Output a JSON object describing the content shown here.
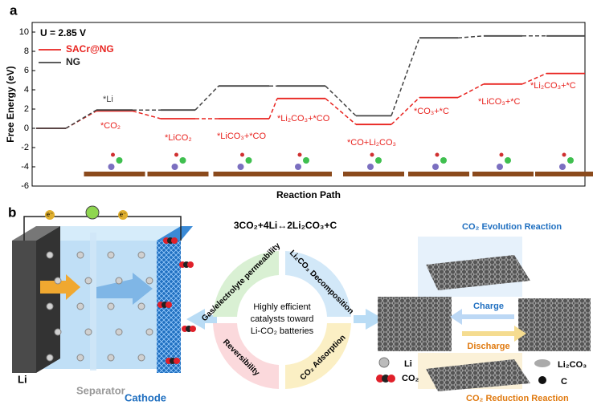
{
  "chart_data": {
    "type": "step_energy",
    "panel": "a",
    "condition": "U = 2.85 V",
    "y_label": "Free Energy (eV)",
    "x_label": "Reaction Path",
    "categories": [
      null,
      "*CO₂",
      "*LiCO₂",
      "*LiCO₃+*CO",
      "*Li₂CO₃+*CO",
      "*CO+Li₂CO₃",
      "*CO₃+*C",
      "*LiCO₃+*C",
      "*Li₂CO₃+*C"
    ],
    "annotations": [
      "*Li"
    ],
    "series": [
      {
        "name": "SACr@NG",
        "color": "#e8231f",
        "values": [
          0,
          1.8,
          1.0,
          1.0,
          3.1,
          0.4,
          3.2,
          4.6,
          5.7
        ]
      },
      {
        "name": "NG",
        "color": "#444444",
        "values": [
          0,
          1.9,
          1.9,
          4.4,
          4.4,
          1.3,
          9.4,
          9.6,
          9.6
        ]
      }
    ],
    "ylim": [
      -6,
      11
    ],
    "yticks": [
      -6,
      -4,
      -2,
      0,
      2,
      4,
      6,
      8,
      10
    ]
  },
  "schematic": {
    "panel": "b",
    "reaction": "3CO₂+4Li↔2Li₂CO₃+C",
    "electron": "e⁻",
    "battery": {
      "anode": "Li",
      "separator": "Separator",
      "cathode": "Cathode"
    },
    "quadrants": [
      "Gas/electrolyte permeability",
      "Li₂CO₃ Decomposition",
      "CO₂ Adsorption",
      "Reversibility"
    ],
    "center": [
      "Highly efficient",
      "catalysts toward",
      "Li-CO₂ batteries"
    ],
    "evolution": "CO₂ Evolution Reaction",
    "reduction": "CO₂ Reduction Reaction",
    "charge": "Charge",
    "discharge": "Discharge",
    "legend": [
      "Li",
      "CO₂",
      "Li₂CO₃",
      "C"
    ]
  }
}
